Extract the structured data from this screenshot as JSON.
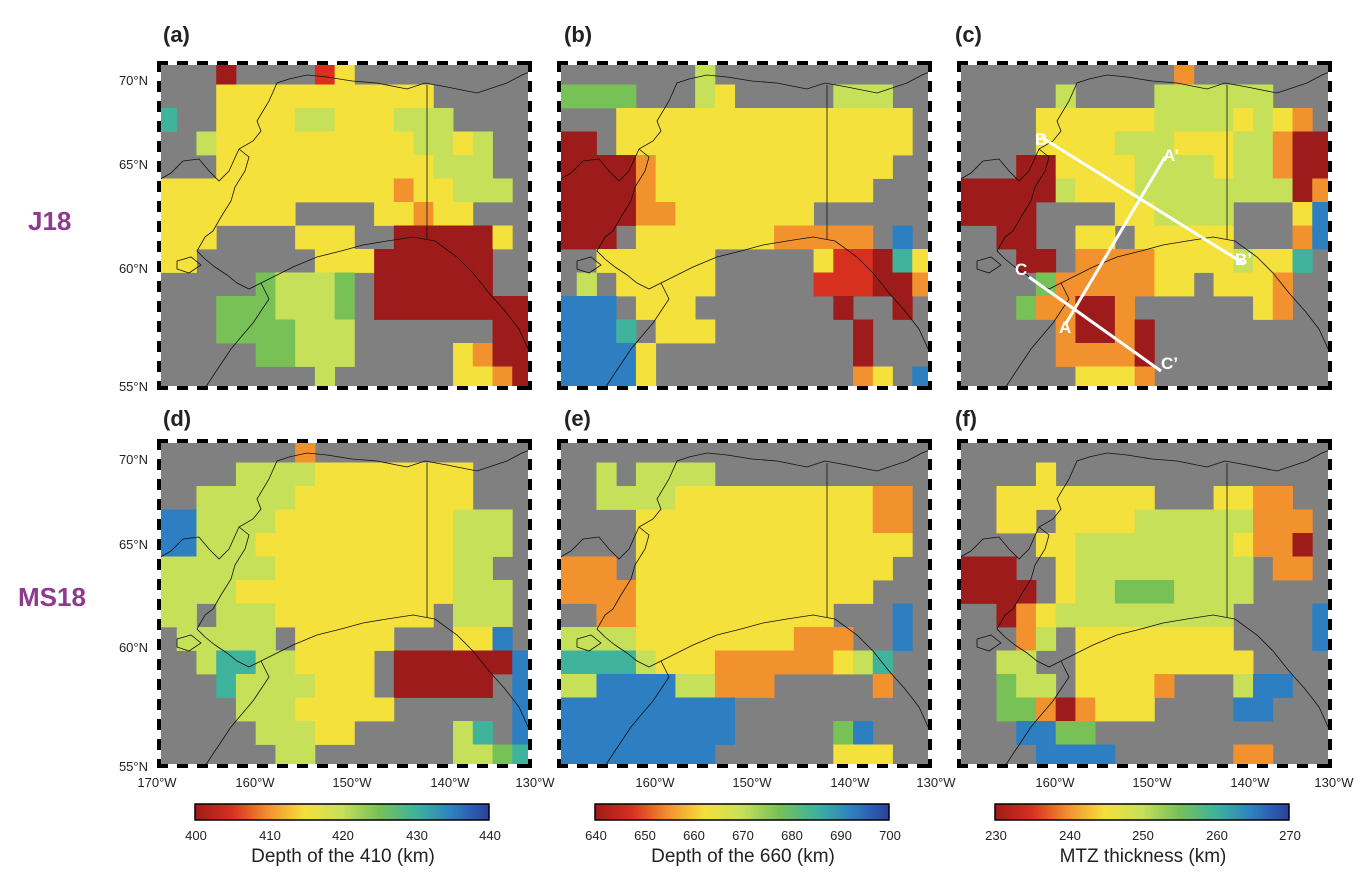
{
  "row_labels": [
    "J18",
    "MS18"
  ],
  "panels": [
    {
      "id": "a",
      "label": "(a)",
      "row": 0,
      "col": 0
    },
    {
      "id": "b",
      "label": "(b)",
      "row": 0,
      "col": 1
    },
    {
      "id": "c",
      "label": "(c)",
      "row": 0,
      "col": 2
    },
    {
      "id": "d",
      "label": "(d)",
      "row": 1,
      "col": 0
    },
    {
      "id": "e",
      "label": "(e)",
      "row": 1,
      "col": 1
    },
    {
      "id": "f",
      "label": "(f)",
      "row": 1,
      "col": 2
    }
  ],
  "lat_labels": [
    "70°N",
    "65°N",
    "60°N",
    "55°N"
  ],
  "lon_labels_col0": [
    "170°W",
    "160°W",
    "150°W",
    "140°W",
    "130°W"
  ],
  "lon_labels_col1": [
    "160°W",
    "150°W",
    "140°W",
    "130°W"
  ],
  "lon_labels_col2": [
    "160°W",
    "150°W",
    "140°W",
    "130°W"
  ],
  "colorbars": [
    {
      "title": "Depth of the 410 (km)",
      "ticks": [
        "400",
        "410",
        "420",
        "430",
        "440"
      ]
    },
    {
      "title": "Depth of the 660 (km)",
      "ticks": [
        "640",
        "650",
        "660",
        "670",
        "680",
        "690",
        "700"
      ]
    },
    {
      "title": "MTZ thickness (km)",
      "ticks": [
        "230",
        "240",
        "250",
        "260",
        "270"
      ]
    }
  ],
  "profile_labels": [
    "A",
    "A’",
    "B",
    "B’",
    "C",
    "C’"
  ],
  "colors": {
    "no_data": "#808080",
    "row_label": "#8e3a8e",
    "scale": [
      "#9e1b1b",
      "#d7301f",
      "#f2922e",
      "#f5e13c",
      "#c7e05a",
      "#78c157",
      "#3fb39c",
      "#2e7fc1",
      "#2b3f9e"
    ]
  }
}
